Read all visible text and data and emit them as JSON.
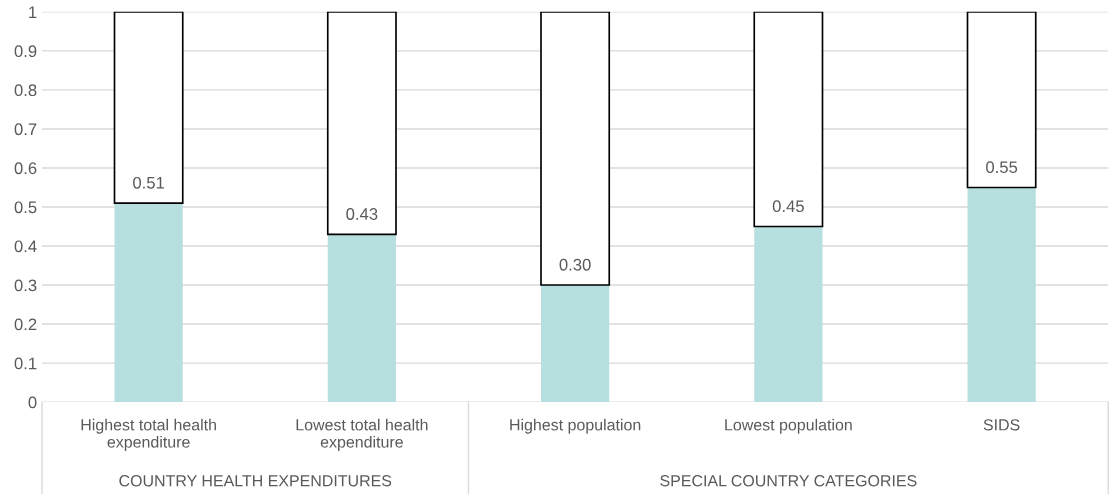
{
  "chart_data": {
    "type": "bar",
    "categories": [
      "Highest total health\nexpenditure",
      "Lowest total health\nexpenditure",
      "Highest population",
      "Lowest population",
      "SIDS"
    ],
    "series": [
      {
        "color": "#b7dfe0",
        "values": [
          0.51,
          0.43,
          0.3,
          0.45,
          0.55
        ],
        "value_labels": [
          "0.51",
          "0.43",
          "0.30",
          "0.45",
          "0.55"
        ]
      },
      {
        "color": "#ffffff",
        "values": [
          0.49,
          0.57,
          0.7,
          0.55,
          0.45
        ]
      }
    ],
    "stacked": true,
    "ylim": [
      0,
      1
    ],
    "yticks": [
      0,
      0.1,
      0.2,
      0.3,
      0.4,
      0.5,
      0.6,
      0.7,
      0.8,
      0.9,
      1
    ],
    "grid": "y",
    "legend": false,
    "annotations": [
      "COUNTRY HEALTH EXPENDITURES",
      "SPECIAL COUNTRY CATEGORIES"
    ]
  }
}
